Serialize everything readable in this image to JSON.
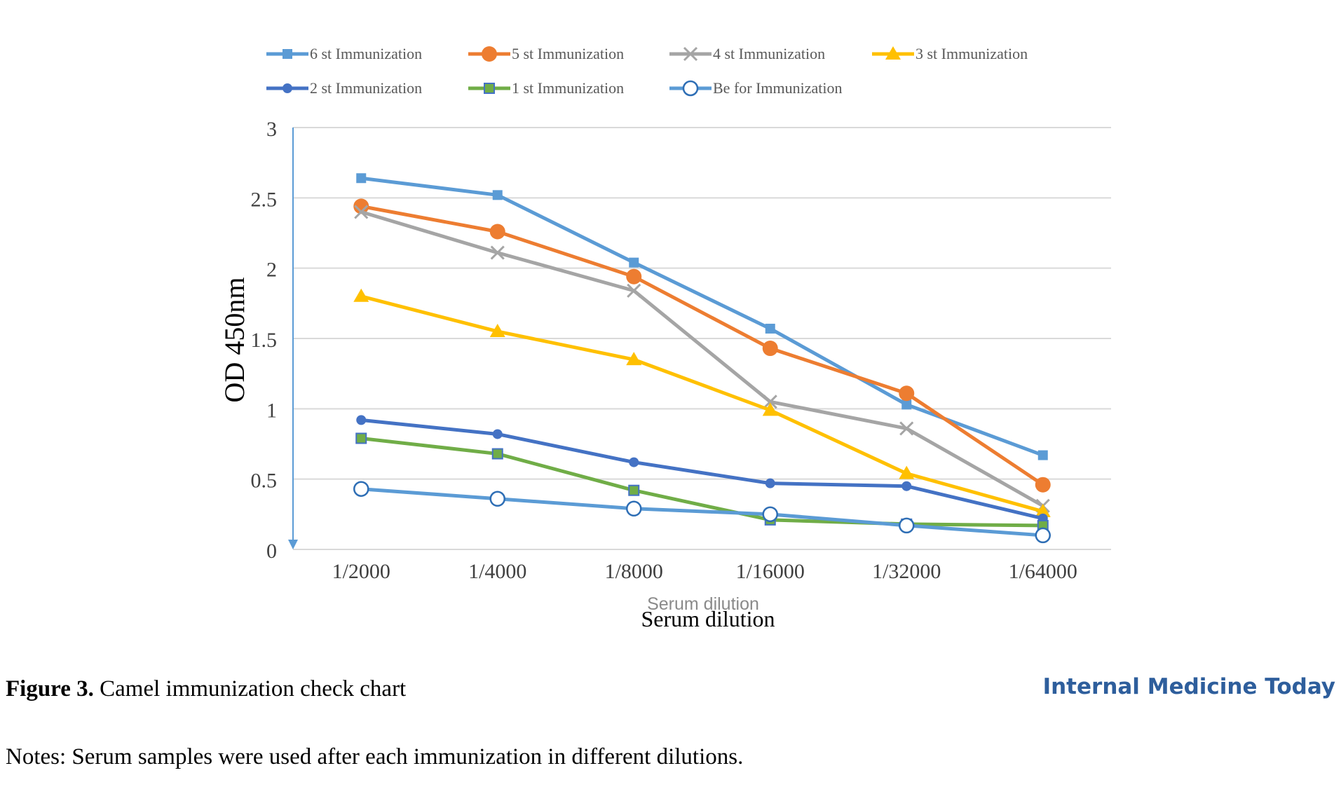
{
  "figure": {
    "label": "Figure 3.",
    "caption": "Camel immunization check chart",
    "journal": "Internal Medicine Today",
    "notes": "Notes: Serum samples were used after each immunization in different dilutions."
  },
  "chart_data": {
    "type": "line",
    "ylabel": "OD 450nm",
    "xlabel": "Serum dilution",
    "xlabel_ghost": "Serum dilution",
    "categories": [
      "1/2000",
      "1/4000",
      "1/8000",
      "1/16000",
      "1/32000",
      "1/64000"
    ],
    "ylim": [
      0,
      3
    ],
    "yticks": [
      "0",
      "0.5",
      "1",
      "1.5",
      "2",
      "2.5",
      "3"
    ],
    "grid": true,
    "legend_position": "top",
    "series": [
      {
        "name": "6 st Immunization",
        "color": "#5b9bd5",
        "marker": "square",
        "values": [
          2.64,
          2.52,
          2.04,
          1.57,
          1.03,
          0.67
        ]
      },
      {
        "name": "5 st Immunization",
        "color": "#ed7d31",
        "marker": "circle",
        "values": [
          2.44,
          2.26,
          1.94,
          1.43,
          1.11,
          0.46
        ]
      },
      {
        "name": "4 st Immunization",
        "color": "#a5a5a5",
        "marker": "x",
        "values": [
          2.4,
          2.11,
          1.84,
          1.05,
          0.86,
          0.31
        ]
      },
      {
        "name": "3 st Immunization",
        "color": "#ffc000",
        "marker": "triangle",
        "values": [
          1.8,
          1.55,
          1.35,
          0.99,
          0.54,
          0.27
        ]
      },
      {
        "name": "2 st Immunization",
        "color": "#4472c4",
        "marker": "dot",
        "values": [
          0.92,
          0.82,
          0.62,
          0.47,
          0.45,
          0.22
        ]
      },
      {
        "name": "1 st Immunization",
        "color": "#70ad47",
        "marker": "square-green",
        "values": [
          0.79,
          0.68,
          0.42,
          0.21,
          0.18,
          0.17
        ]
      },
      {
        "name": "Be for Immunization",
        "color": "#5b9bd5",
        "marker": "hollow-circle",
        "values": [
          0.43,
          0.36,
          0.29,
          0.25,
          0.17,
          0.1
        ]
      }
    ]
  }
}
